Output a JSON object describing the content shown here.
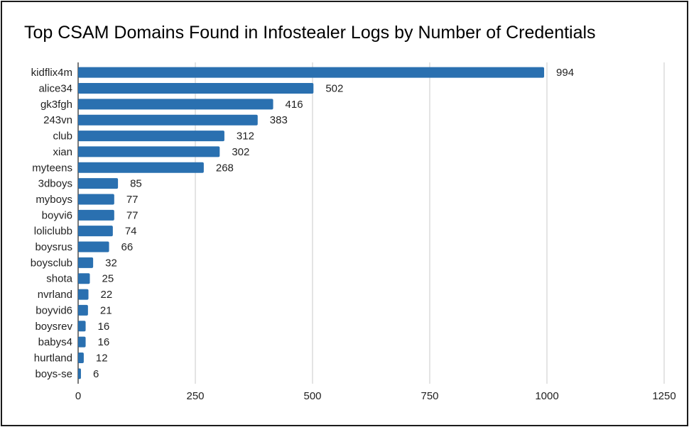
{
  "chart_data": {
    "type": "bar",
    "orientation": "horizontal",
    "title": "Top CSAM Domains Found in Infostealer Logs by Number of Credentials",
    "categories": [
      "kidflix4m",
      "alice34",
      "gk3fgh",
      "243vn",
      "club",
      "xian",
      "myteens",
      "3dboys",
      "myboys",
      "boyvi6",
      "loliclubb",
      "boysrus",
      "boysclub",
      "shota",
      "nvrland",
      "boyvid6",
      "boysrev",
      "babys4",
      "hurtland",
      "boys-se"
    ],
    "values": [
      994,
      502,
      416,
      383,
      312,
      302,
      268,
      85,
      77,
      77,
      74,
      66,
      32,
      25,
      22,
      21,
      16,
      16,
      12,
      6
    ],
    "xlim": [
      0,
      1250
    ],
    "xticks": [
      0,
      250,
      500,
      750,
      1000,
      1250
    ],
    "grid": "vertical",
    "data_labels": true,
    "bar_color": "#2a70b0"
  }
}
